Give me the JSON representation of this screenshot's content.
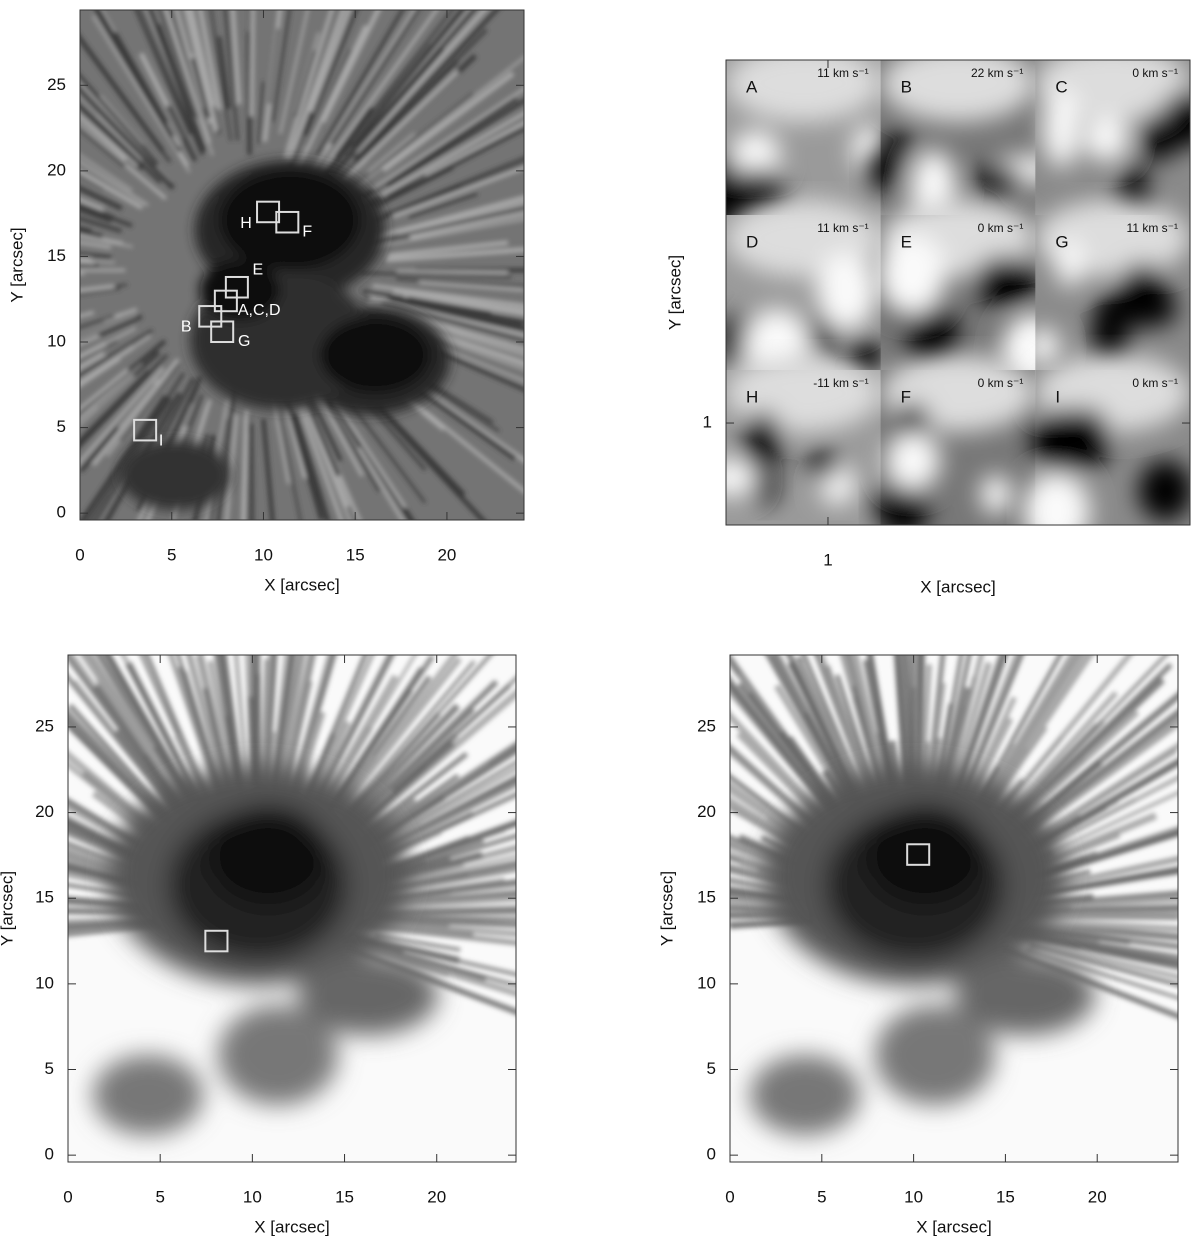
{
  "chart_data": [
    {
      "type": "image",
      "xlabel": "X [arcsec]",
      "ylabel": "Y [arcsec]",
      "xlim": [
        0,
        24.2
      ],
      "ylim": [
        -0.4,
        29.4
      ],
      "xticks": [
        0,
        5,
        10,
        15,
        20
      ],
      "yticks": [
        0,
        5,
        10,
        15,
        20,
        25
      ],
      "box_size": 1.2,
      "boxes": [
        {
          "label": "H",
          "x": 10.25,
          "y": 17.6
        },
        {
          "label": "F",
          "x": 11.3,
          "y": 17.0
        },
        {
          "label": "E",
          "x": 8.55,
          "y": 13.2
        },
        {
          "label": "A,C,D",
          "x": 7.95,
          "y": 12.4
        },
        {
          "label": "B",
          "x": 7.1,
          "y": 11.5
        },
        {
          "label": "G",
          "x": 7.75,
          "y": 10.6
        },
        {
          "label": "I",
          "x": 3.55,
          "y": 4.85
        }
      ]
    },
    {
      "type": "image-grid",
      "xlabel": "X [arcsec]",
      "ylabel": "Y [arcsec]",
      "xlim": [
        0,
        4.55
      ],
      "ylim": [
        0,
        4.56
      ],
      "xticks": [
        1
      ],
      "yticks": [
        1
      ],
      "cells": [
        {
          "label": "A",
          "velocity": "11 km s⁻¹"
        },
        {
          "label": "B",
          "velocity": "22 km s⁻¹"
        },
        {
          "label": "C",
          "velocity": "0 km s⁻¹"
        },
        {
          "label": "D",
          "velocity": "11 km s⁻¹"
        },
        {
          "label": "E",
          "velocity": "0 km s⁻¹"
        },
        {
          "label": "G",
          "velocity": "11 km s⁻¹"
        },
        {
          "label": "H",
          "velocity": "-11 km s⁻¹"
        },
        {
          "label": "F",
          "velocity": "0 km s⁻¹"
        },
        {
          "label": "I",
          "velocity": "0 km s⁻¹"
        }
      ]
    },
    {
      "type": "image",
      "xlabel": "X [arcsec]",
      "ylabel": "Y [arcsec]",
      "xlim": [
        0,
        24.3
      ],
      "ylim": [
        -0.4,
        29.2
      ],
      "xticks": [
        0,
        5,
        10,
        15,
        20
      ],
      "yticks": [
        0,
        5,
        10,
        15,
        20,
        25
      ],
      "box_size": 1.2,
      "boxes": [
        {
          "x": 8.05,
          "y": 12.5
        }
      ]
    },
    {
      "type": "image",
      "xlabel": "X [arcsec]",
      "ylabel": "Y [arcsec]",
      "xlim": [
        0,
        24.4
      ],
      "ylim": [
        -0.4,
        29.2
      ],
      "xticks": [
        0,
        5,
        10,
        15,
        20
      ],
      "yticks": [
        0,
        5,
        10,
        15,
        20,
        25
      ],
      "box_size": 1.2,
      "boxes": [
        {
          "x": 10.25,
          "y": 17.55
        }
      ]
    }
  ]
}
